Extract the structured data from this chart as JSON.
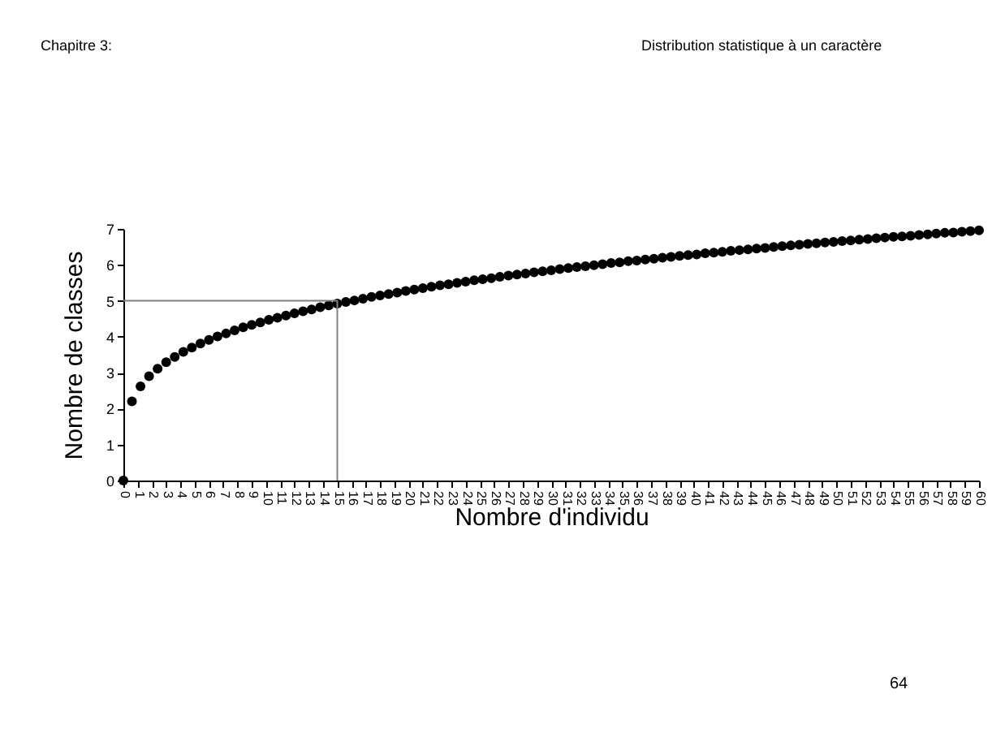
{
  "chart_data": {
    "type": "scatter",
    "xlabel": "Nombre d'individu",
    "ylabel": "Nombre de classes",
    "annotations": [
      "Chapitre 3:",
      "Distribution statistique à un caractère",
      "64"
    ],
    "xlim": [
      0,
      60
    ],
    "xticks": [
      0,
      1,
      2,
      3,
      4,
      5,
      6,
      7,
      8,
      9,
      10,
      11,
      12,
      13,
      14,
      15,
      16,
      17,
      18,
      19,
      20,
      21,
      22,
      23,
      24,
      25,
      26,
      27,
      28,
      29,
      30,
      31,
      32,
      33,
      34,
      35,
      36,
      37,
      38,
      39,
      40,
      41,
      42,
      43,
      44,
      45,
      46,
      47,
      48,
      49,
      50,
      51,
      52,
      53,
      54,
      55,
      56,
      57,
      58,
      59,
      60
    ],
    "ylim": [
      0,
      7
    ],
    "yticks": [
      0,
      1,
      2,
      3,
      4,
      5,
      6,
      7
    ],
    "grid": false,
    "marker": "circle",
    "series": [
      {
        "color": "#000000",
        "x": [
          0,
          0.6,
          1.2,
          1.8,
          2.4,
          3.0,
          3.6,
          4.2,
          4.8,
          5.4,
          6.0,
          6.6,
          7.2,
          7.8,
          8.4,
          9.0,
          9.6,
          10.2,
          10.8,
          11.4,
          12.0,
          12.6,
          13.2,
          13.8,
          14.4,
          15.0,
          15.6,
          16.2,
          16.8,
          17.4,
          18.0,
          18.6,
          19.2,
          19.8,
          20.4,
          21.0,
          21.6,
          22.2,
          22.8,
          23.4,
          24.0,
          24.6,
          25.2,
          25.8,
          26.4,
          27.0,
          27.6,
          28.2,
          28.8,
          29.4,
          30.0,
          30.6,
          31.2,
          31.8,
          32.4,
          33.0,
          33.6,
          34.2,
          34.8,
          35.4,
          36.0,
          36.6,
          37.2,
          37.8,
          38.4,
          39.0,
          39.6,
          40.2,
          40.8,
          41.4,
          42.0,
          42.6,
          43.2,
          43.8,
          44.4,
          45.0,
          45.6,
          46.2,
          46.8,
          47.4,
          48.0,
          48.6,
          49.2,
          49.8,
          50.4,
          51.0,
          51.6,
          52.2,
          52.8,
          53.4,
          54.0,
          54.6,
          55.2,
          55.8,
          56.4,
          57.0,
          57.6,
          58.2,
          58.8,
          59.4,
          60.0
        ],
        "values": [
          0,
          2.2,
          2.62,
          2.9,
          3.11,
          3.29,
          3.44,
          3.58,
          3.7,
          3.81,
          3.91,
          4.01,
          4.09,
          4.18,
          4.26,
          4.33,
          4.4,
          4.47,
          4.53,
          4.59,
          4.65,
          4.71,
          4.76,
          4.82,
          4.87,
          4.92,
          4.97,
          5.01,
          5.06,
          5.11,
          5.15,
          5.19,
          5.23,
          5.27,
          5.31,
          5.35,
          5.39,
          5.43,
          5.46,
          5.5,
          5.53,
          5.57,
          5.6,
          5.63,
          5.67,
          5.7,
          5.73,
          5.76,
          5.79,
          5.82,
          5.85,
          5.88,
          5.91,
          5.94,
          5.96,
          5.99,
          6.02,
          6.05,
          6.07,
          6.1,
          6.12,
          6.15,
          6.17,
          6.2,
          6.22,
          6.25,
          6.27,
          6.29,
          6.32,
          6.34,
          6.36,
          6.39,
          6.41,
          6.43,
          6.45,
          6.47,
          6.5,
          6.52,
          6.54,
          6.56,
          6.58,
          6.6,
          6.62,
          6.64,
          6.66,
          6.68,
          6.7,
          6.72,
          6.74,
          6.76,
          6.78,
          6.79,
          6.81,
          6.83,
          6.85,
          6.87,
          6.89,
          6.9,
          6.92,
          6.94,
          6.96
        ]
      },
      {
        "type": "line",
        "marker": "none",
        "color": "#808080",
        "x": [
          0,
          15,
          15
        ],
        "values": [
          5,
          5,
          0
        ]
      }
    ]
  }
}
